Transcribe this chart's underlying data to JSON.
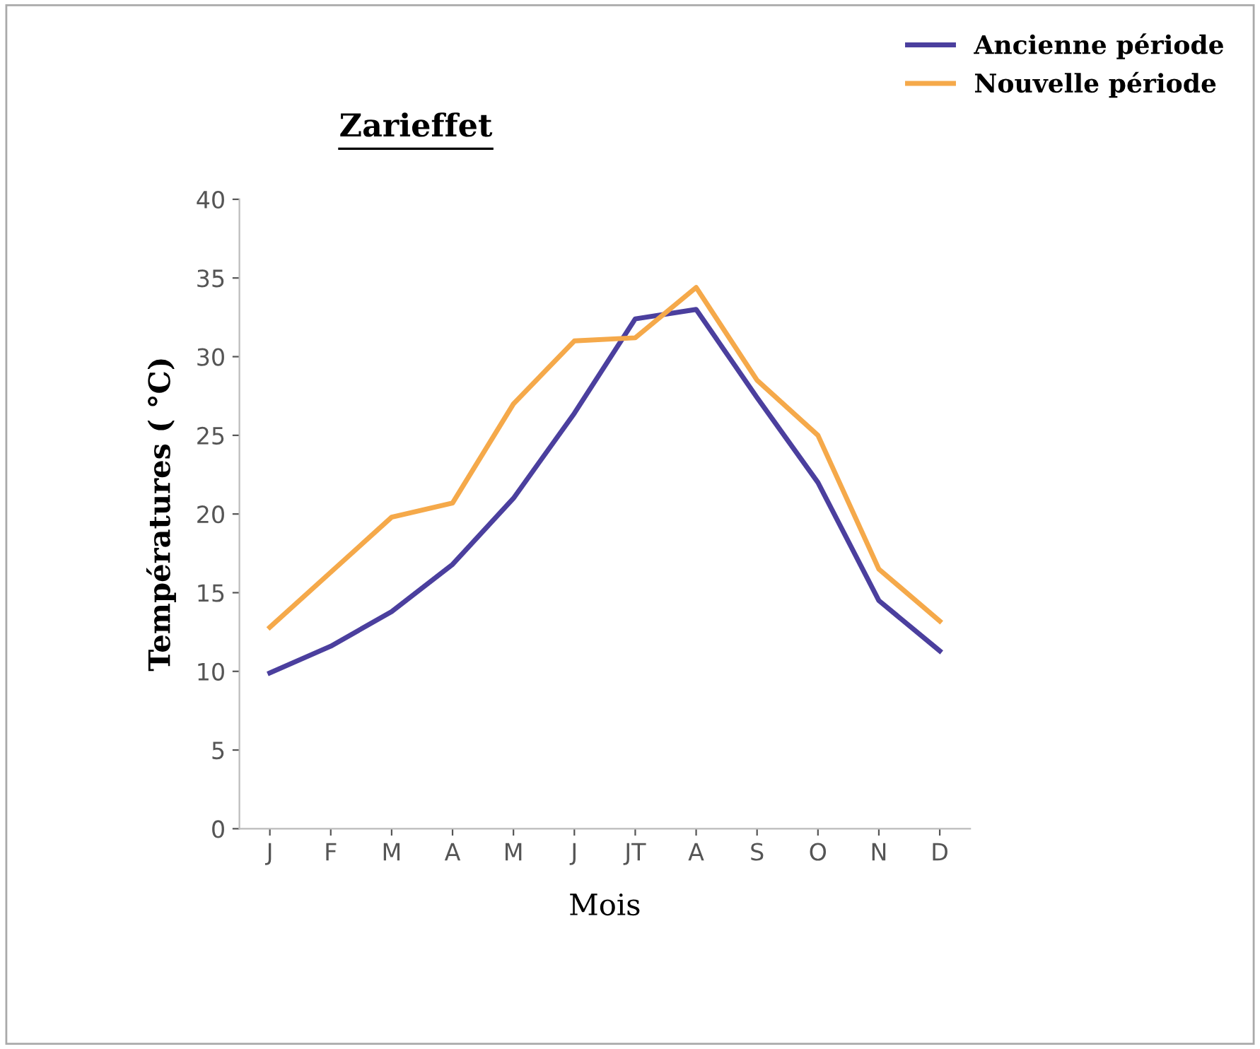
{
  "chart_data": {
    "type": "line",
    "title": "Zarieffet",
    "xlabel": "Mois",
    "ylabel": "Températures ( °C)",
    "categories": [
      "J",
      "F",
      "M",
      "A",
      "M",
      "J",
      "JT",
      "A",
      "S",
      "O",
      "N",
      "D"
    ],
    "series": [
      {
        "name": "Ancienne période",
        "color": "#4b3f9e",
        "values": [
          9.9,
          11.6,
          13.8,
          16.8,
          21,
          26.4,
          32.4,
          33,
          27.4,
          22,
          14.5,
          11.3
        ]
      },
      {
        "name": "Nouvelle période",
        "color": "#f5a94a",
        "values": [
          12.8,
          16.3,
          19.8,
          20.7,
          27,
          31,
          31.2,
          34.4,
          28.5,
          25,
          16.5,
          13.2
        ]
      }
    ],
    "ylim": [
      0,
      40
    ],
    "yticks": [
      0,
      5,
      10,
      15,
      20,
      25,
      30,
      35,
      40
    ],
    "grid": false,
    "legend": "top right",
    "marker": "none",
    "line_style": "solid"
  }
}
